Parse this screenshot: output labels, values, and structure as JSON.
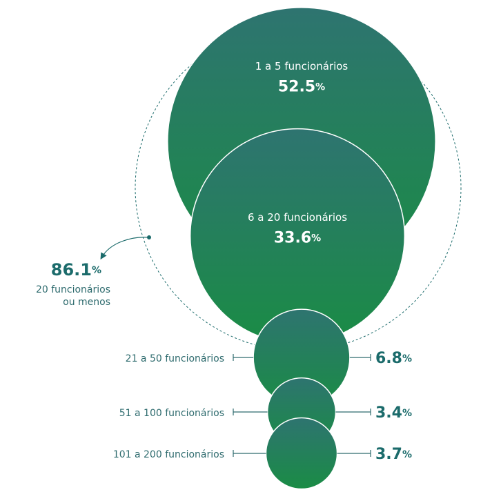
{
  "chart_data": {
    "type": "bubble",
    "categories": [
      "1 a 5 funcionários",
      "6 a 20 funcionários",
      "21 a 50 funcionários",
      "51 a 100 funcionários",
      "101 a 200 funcionários"
    ],
    "values": [
      52.5,
      33.6,
      6.8,
      3.4,
      3.7
    ],
    "unit": "%",
    "color": [
      "#2e7470",
      "#1a8c45"
    ],
    "annotation": {
      "value": 86.1,
      "label": [
        "20 funcionários",
        "ou menos"
      ]
    }
  }
}
